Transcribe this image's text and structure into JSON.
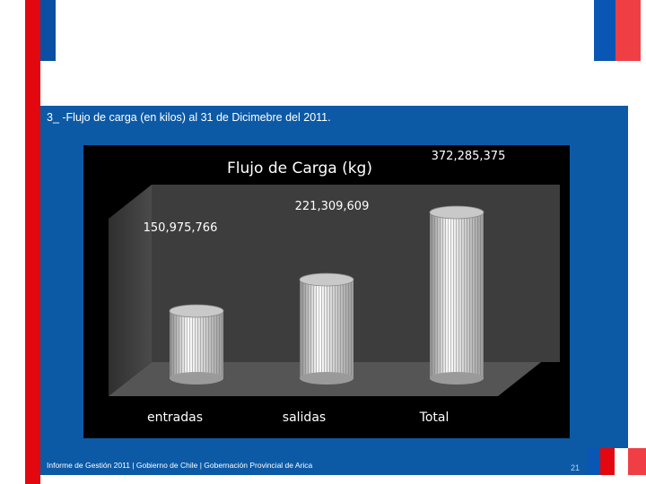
{
  "slide": {
    "headline": "3_ -Flujo de carga (en kilos) al 31 de Dicimebre del 2011.",
    "footer": "Informe de Gestión 2011 | Gobierno de Chile | Gobernación Provincial de Arica",
    "page_number": "21"
  },
  "colors": {
    "red": "#e3070f",
    "blue": "#0a56b4",
    "panel": "#0c5aa6"
  },
  "chart_data": {
    "type": "bar",
    "title": "Flujo de Carga  (kg)",
    "categories": [
      "entradas",
      "salidas",
      "Total"
    ],
    "values": [
      150975766,
      221309609,
      372285375
    ],
    "value_labels": [
      "150,975,766",
      "221,309,609",
      "372,285,375"
    ],
    "bar_style": "3d-cylinder",
    "ylim": [
      0,
      372285375
    ]
  }
}
